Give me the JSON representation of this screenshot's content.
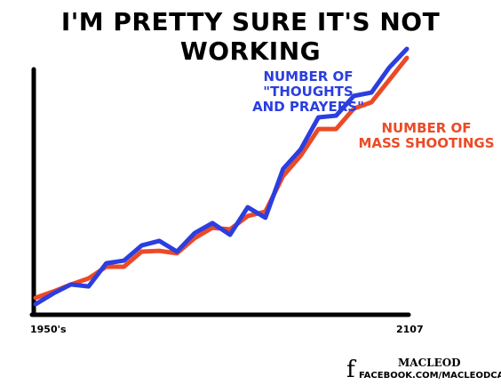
{
  "chart_data": {
    "type": "line",
    "title": "I'M PRETTY SURE IT'S NOT WORKING",
    "categories": [
      "1950's",
      null,
      null,
      null,
      null,
      null,
      null,
      null,
      null,
      null,
      null,
      null,
      null,
      null,
      null,
      null,
      null,
      null,
      null,
      null,
      null,
      "2107"
    ],
    "series": [
      {
        "name": "NUMBER OF\n\"THOUGHTS\nAND PRAYERS\"",
        "color": "#2b3ee0",
        "values": [
          3.6,
          8,
          11.7,
          10.9,
          20.4,
          21.5,
          27.7,
          29.6,
          25.2,
          32.8,
          36.9,
          32.1,
          43.4,
          39.1,
          59.1,
          67.2,
          80.3,
          81,
          89.1,
          90.5,
          100.7,
          108.4
        ]
      },
      {
        "name": "NUMBER OF\nMASS SHOOTINGS",
        "color": "#ec4a26",
        "values": [
          6.2,
          8.8,
          11.7,
          14.2,
          19,
          19,
          25.2,
          25.5,
          24.5,
          30.7,
          35,
          34.3,
          39.8,
          41.6,
          56.2,
          64.6,
          75.5,
          75.5,
          83.9,
          86.5,
          95.6,
          104.7
        ]
      }
    ],
    "ylim": [
      0,
      110
    ],
    "credit": "MACLEOD",
    "footer": "FACEBOOK.COM/MACLEODCARTOONS"
  }
}
